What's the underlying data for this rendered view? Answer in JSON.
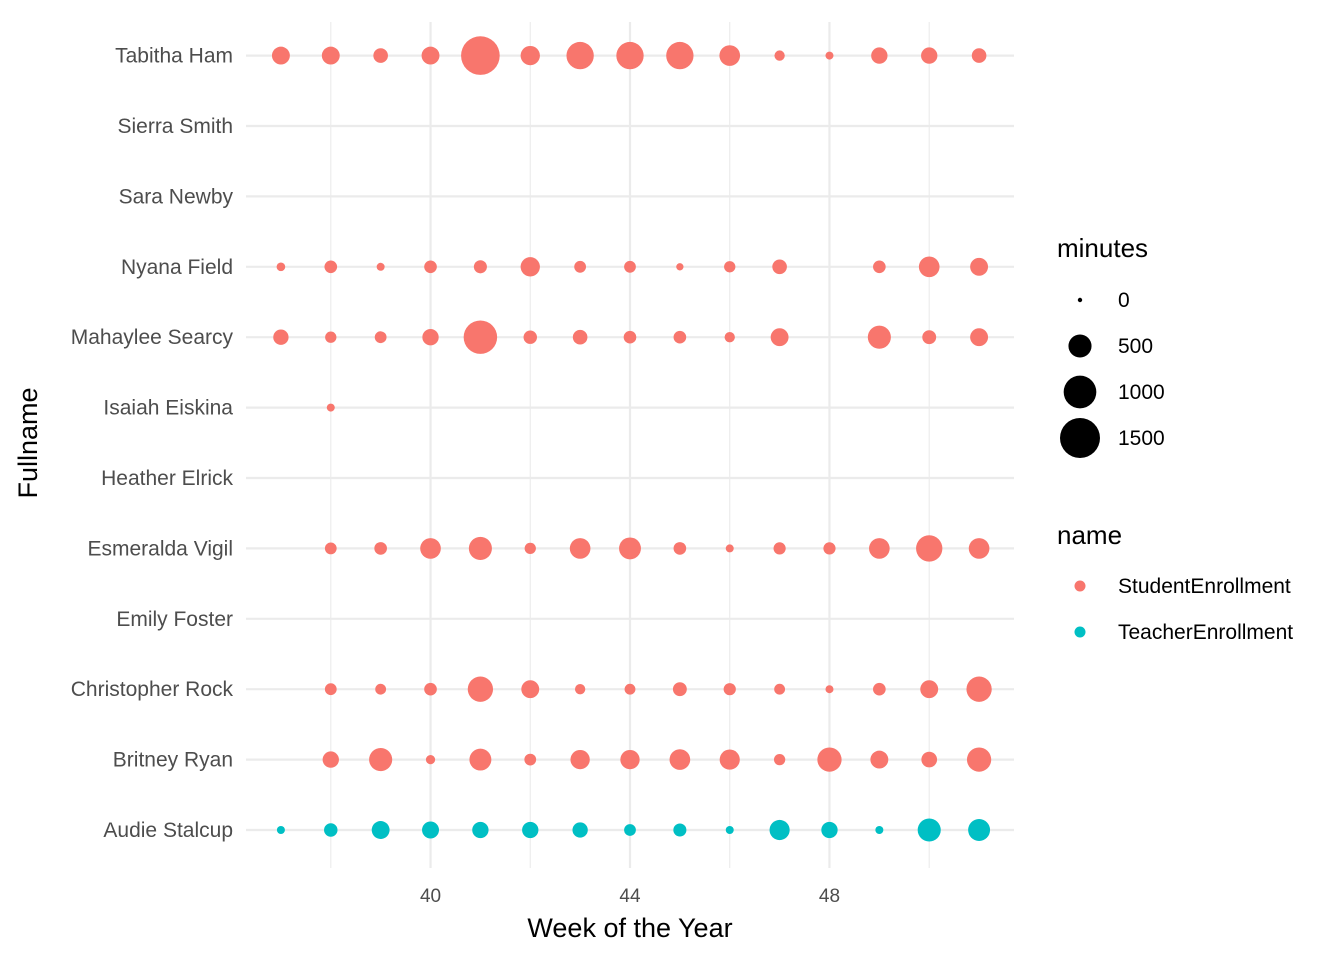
{
  "chart_data": {
    "type": "scatter",
    "xlabel": "Week of the Year",
    "ylabel": "Fullname",
    "x_ticks": [
      40,
      44,
      48
    ],
    "x_minor": [
      38,
      42,
      46,
      50
    ],
    "xlim": [
      36.3,
      51.7
    ],
    "categories": [
      "Audie Stalcup",
      "Britney Ryan",
      "Christopher Rock",
      "Emily Foster",
      "Esmeralda Vigil",
      "Heather Elrick",
      "Isaiah Eiskina",
      "Mahaylee Searcy",
      "Nyana Field",
      "Sara Newby",
      "Sierra Smith",
      "Tabitha Ham"
    ],
    "grid": true,
    "legend_placement": "right",
    "size_legend": {
      "title": "minutes",
      "breaks": [
        0,
        500,
        1000,
        1500
      ],
      "labels": [
        "0",
        "500",
        "1000",
        "1500"
      ]
    },
    "color_legend": {
      "title": "name",
      "entries": [
        {
          "label": "StudentEnrollment",
          "color": "#F8766D"
        },
        {
          "label": "TeacherEnrollment",
          "color": "#00BFC4"
        }
      ]
    },
    "series": [
      {
        "name": "StudentEnrollment",
        "color": "#F8766D",
        "points": [
          {
            "person": "Tabitha Ham",
            "x": 37,
            "minutes": 300
          },
          {
            "person": "Tabitha Ham",
            "x": 38,
            "minutes": 300
          },
          {
            "person": "Tabitha Ham",
            "x": 39,
            "minutes": 200
          },
          {
            "person": "Tabitha Ham",
            "x": 40,
            "minutes": 300
          },
          {
            "person": "Tabitha Ham",
            "x": 41,
            "minutes": 1400
          },
          {
            "person": "Tabitha Ham",
            "x": 42,
            "minutes": 350
          },
          {
            "person": "Tabitha Ham",
            "x": 43,
            "minutes": 700
          },
          {
            "person": "Tabitha Ham",
            "x": 44,
            "minutes": 700
          },
          {
            "person": "Tabitha Ham",
            "x": 45,
            "minutes": 700
          },
          {
            "person": "Tabitha Ham",
            "x": 46,
            "minutes": 400
          },
          {
            "person": "Tabitha Ham",
            "x": 47,
            "minutes": 100
          },
          {
            "person": "Tabitha Ham",
            "x": 48,
            "minutes": 60
          },
          {
            "person": "Tabitha Ham",
            "x": 49,
            "minutes": 250
          },
          {
            "person": "Tabitha Ham",
            "x": 50,
            "minutes": 250
          },
          {
            "person": "Tabitha Ham",
            "x": 51,
            "minutes": 200
          },
          {
            "person": "Nyana Field",
            "x": 37,
            "minutes": 70
          },
          {
            "person": "Nyana Field",
            "x": 38,
            "minutes": 150
          },
          {
            "person": "Nyana Field",
            "x": 39,
            "minutes": 60
          },
          {
            "person": "Nyana Field",
            "x": 40,
            "minutes": 150
          },
          {
            "person": "Nyana Field",
            "x": 41,
            "minutes": 160
          },
          {
            "person": "Nyana Field",
            "x": 42,
            "minutes": 350
          },
          {
            "person": "Nyana Field",
            "x": 43,
            "minutes": 130
          },
          {
            "person": "Nyana Field",
            "x": 44,
            "minutes": 130
          },
          {
            "person": "Nyana Field",
            "x": 45,
            "minutes": 50
          },
          {
            "person": "Nyana Field",
            "x": 46,
            "minutes": 120
          },
          {
            "person": "Nyana Field",
            "x": 47,
            "minutes": 200
          },
          {
            "person": "Nyana Field",
            "x": 49,
            "minutes": 150
          },
          {
            "person": "Nyana Field",
            "x": 50,
            "minutes": 400
          },
          {
            "person": "Nyana Field",
            "x": 51,
            "minutes": 300
          },
          {
            "person": "Mahaylee Searcy",
            "x": 37,
            "minutes": 220
          },
          {
            "person": "Mahaylee Searcy",
            "x": 38,
            "minutes": 120
          },
          {
            "person": "Mahaylee Searcy",
            "x": 39,
            "minutes": 130
          },
          {
            "person": "Mahaylee Searcy",
            "x": 40,
            "minutes": 250
          },
          {
            "person": "Mahaylee Searcy",
            "x": 41,
            "minutes": 1050
          },
          {
            "person": "Mahaylee Searcy",
            "x": 42,
            "minutes": 170
          },
          {
            "person": "Mahaylee Searcy",
            "x": 43,
            "minutes": 200
          },
          {
            "person": "Mahaylee Searcy",
            "x": 44,
            "minutes": 150
          },
          {
            "person": "Mahaylee Searcy",
            "x": 45,
            "minutes": 150
          },
          {
            "person": "Mahaylee Searcy",
            "x": 46,
            "minutes": 100
          },
          {
            "person": "Mahaylee Searcy",
            "x": 47,
            "minutes": 300
          },
          {
            "person": "Mahaylee Searcy",
            "x": 49,
            "minutes": 500
          },
          {
            "person": "Mahaylee Searcy",
            "x": 50,
            "minutes": 180
          },
          {
            "person": "Mahaylee Searcy",
            "x": 51,
            "minutes": 300
          },
          {
            "person": "Isaiah Eiskina",
            "x": 38,
            "minutes": 60
          },
          {
            "person": "Esmeralda Vigil",
            "x": 38,
            "minutes": 130
          },
          {
            "person": "Esmeralda Vigil",
            "x": 39,
            "minutes": 150
          },
          {
            "person": "Esmeralda Vigil",
            "x": 40,
            "minutes": 400
          },
          {
            "person": "Esmeralda Vigil",
            "x": 41,
            "minutes": 500
          },
          {
            "person": "Esmeralda Vigil",
            "x": 42,
            "minutes": 120
          },
          {
            "person": "Esmeralda Vigil",
            "x": 43,
            "minutes": 400
          },
          {
            "person": "Esmeralda Vigil",
            "x": 44,
            "minutes": 450
          },
          {
            "person": "Esmeralda Vigil",
            "x": 45,
            "minutes": 150
          },
          {
            "person": "Esmeralda Vigil",
            "x": 46,
            "minutes": 60
          },
          {
            "person": "Esmeralda Vigil",
            "x": 47,
            "minutes": 140
          },
          {
            "person": "Esmeralda Vigil",
            "x": 48,
            "minutes": 140
          },
          {
            "person": "Esmeralda Vigil",
            "x": 49,
            "minutes": 400
          },
          {
            "person": "Esmeralda Vigil",
            "x": 50,
            "minutes": 650
          },
          {
            "person": "Esmeralda Vigil",
            "x": 51,
            "minutes": 400
          },
          {
            "person": "Christopher Rock",
            "x": 38,
            "minutes": 130
          },
          {
            "person": "Christopher Rock",
            "x": 39,
            "minutes": 110
          },
          {
            "person": "Christopher Rock",
            "x": 40,
            "minutes": 150
          },
          {
            "person": "Christopher Rock",
            "x": 41,
            "minutes": 600
          },
          {
            "person": "Christopher Rock",
            "x": 42,
            "minutes": 300
          },
          {
            "person": "Christopher Rock",
            "x": 43,
            "minutes": 100
          },
          {
            "person": "Christopher Rock",
            "x": 44,
            "minutes": 110
          },
          {
            "person": "Christopher Rock",
            "x": 45,
            "minutes": 180
          },
          {
            "person": "Christopher Rock",
            "x": 46,
            "minutes": 140
          },
          {
            "person": "Christopher Rock",
            "x": 47,
            "minutes": 110
          },
          {
            "person": "Christopher Rock",
            "x": 48,
            "minutes": 60
          },
          {
            "person": "Christopher Rock",
            "x": 49,
            "minutes": 150
          },
          {
            "person": "Christopher Rock",
            "x": 50,
            "minutes": 300
          },
          {
            "person": "Christopher Rock",
            "x": 51,
            "minutes": 600
          },
          {
            "person": "Britney Ryan",
            "x": 38,
            "minutes": 250
          },
          {
            "person": "Britney Ryan",
            "x": 39,
            "minutes": 500
          },
          {
            "person": "Britney Ryan",
            "x": 40,
            "minutes": 80
          },
          {
            "person": "Britney Ryan",
            "x": 41,
            "minutes": 450
          },
          {
            "person": "Britney Ryan",
            "x": 42,
            "minutes": 130
          },
          {
            "person": "Britney Ryan",
            "x": 43,
            "minutes": 350
          },
          {
            "person": "Britney Ryan",
            "x": 44,
            "minutes": 350
          },
          {
            "person": "Britney Ryan",
            "x": 45,
            "minutes": 400
          },
          {
            "person": "Britney Ryan",
            "x": 46,
            "minutes": 380
          },
          {
            "person": "Britney Ryan",
            "x": 47,
            "minutes": 120
          },
          {
            "person": "Britney Ryan",
            "x": 48,
            "minutes": 550
          },
          {
            "person": "Britney Ryan",
            "x": 49,
            "minutes": 300
          },
          {
            "person": "Britney Ryan",
            "x": 50,
            "minutes": 230
          },
          {
            "person": "Britney Ryan",
            "x": 51,
            "minutes": 550
          }
        ]
      },
      {
        "name": "TeacherEnrollment",
        "color": "#00BFC4",
        "points": [
          {
            "person": "Audie Stalcup",
            "x": 37,
            "minutes": 60
          },
          {
            "person": "Audie Stalcup",
            "x": 38,
            "minutes": 170
          },
          {
            "person": "Audie Stalcup",
            "x": 39,
            "minutes": 300
          },
          {
            "person": "Audie Stalcup",
            "x": 40,
            "minutes": 270
          },
          {
            "person": "Audie Stalcup",
            "x": 41,
            "minutes": 250
          },
          {
            "person": "Audie Stalcup",
            "x": 42,
            "minutes": 250
          },
          {
            "person": "Audie Stalcup",
            "x": 43,
            "minutes": 220
          },
          {
            "person": "Audie Stalcup",
            "x": 44,
            "minutes": 130
          },
          {
            "person": "Audie Stalcup",
            "x": 45,
            "minutes": 160
          },
          {
            "person": "Audie Stalcup",
            "x": 46,
            "minutes": 60
          },
          {
            "person": "Audie Stalcup",
            "x": 47,
            "minutes": 380
          },
          {
            "person": "Audie Stalcup",
            "x": 48,
            "minutes": 250
          },
          {
            "person": "Audie Stalcup",
            "x": 49,
            "minutes": 60
          },
          {
            "person": "Audie Stalcup",
            "x": 50,
            "minutes": 500
          },
          {
            "person": "Audie Stalcup",
            "x": 51,
            "minutes": 450
          }
        ]
      }
    ]
  }
}
